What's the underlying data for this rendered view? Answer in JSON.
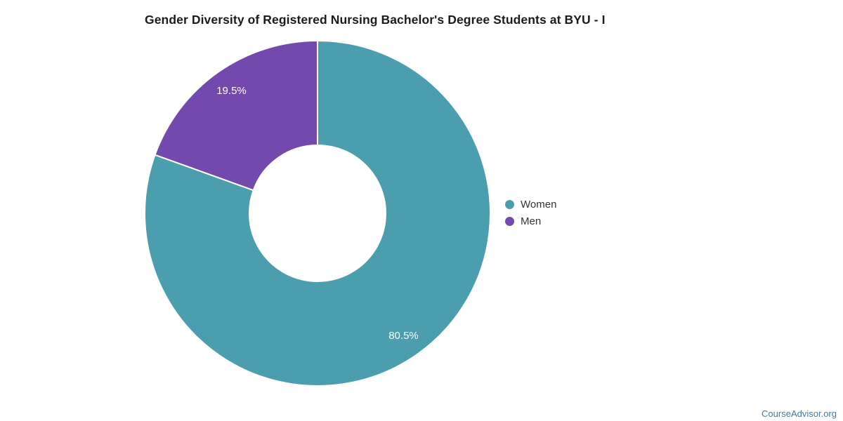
{
  "chart_data": {
    "type": "pie",
    "subtype": "donut",
    "title": "Gender Diversity of Registered Nursing Bachelor's Degree Students at BYU - I",
    "labels": [
      "Women",
      "Men"
    ],
    "values": [
      80.5,
      19.5
    ],
    "slice_labels": [
      "80.5%",
      "19.5%"
    ],
    "colors": [
      "#4A9EAD",
      "#7349AE"
    ],
    "slice_border_color": "#ffffff",
    "slice_label_color": "#ffffff",
    "legend_position": "right",
    "start_angle_deg": 0,
    "direction": "clockwise"
  },
  "footer": {
    "brand": "CourseAdvisor.org",
    "color": "#3E7CA8"
  }
}
